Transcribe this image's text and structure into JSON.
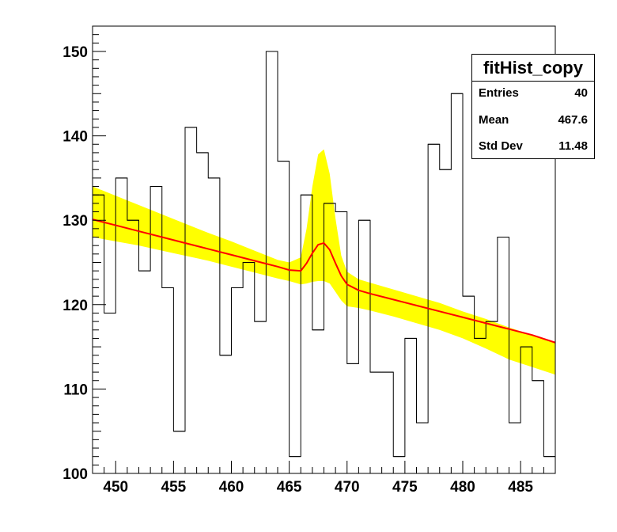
{
  "chart_data": {
    "type": "histogram",
    "title": "",
    "xlabel": "",
    "ylabel": "",
    "xlim": [
      448,
      488
    ],
    "ylim": [
      100,
      153
    ],
    "x_ticks": [
      450,
      455,
      460,
      465,
      470,
      475,
      480,
      485
    ],
    "y_ticks": [
      100,
      110,
      120,
      130,
      140,
      150
    ],
    "bin_width": 1,
    "bin_edges_start": 448,
    "series": [
      {
        "type": "histogram",
        "values": [
          133,
          119,
          135,
          130,
          124,
          134,
          122,
          105,
          141,
          138,
          135,
          114,
          122,
          125,
          118,
          150,
          137,
          102,
          133,
          117,
          132,
          131,
          113,
          130,
          112,
          112,
          102,
          116,
          106,
          139,
          136,
          145,
          121,
          116,
          118,
          128,
          106,
          115,
          111,
          102
        ],
        "color": "#000000"
      },
      {
        "type": "line",
        "x": [
          448,
          450,
          452,
          454,
          456,
          458,
          460,
          462,
          464,
          465,
          466,
          466.5,
          467,
          467.5,
          468,
          468.5,
          469,
          469.5,
          470,
          471,
          472,
          474,
          476,
          478,
          480,
          482,
          484,
          486,
          488
        ],
        "y": [
          130.1,
          129.4,
          128.7,
          128.0,
          127.3,
          126.6,
          125.9,
          125.2,
          124.5,
          124.1,
          124.0,
          124.9,
          126.1,
          127.1,
          127.3,
          126.5,
          124.9,
          123.4,
          122.4,
          121.7,
          121.3,
          120.6,
          119.9,
          119.2,
          118.5,
          117.8,
          117.1,
          116.4,
          115.5
        ],
        "color": "#ff0000"
      },
      {
        "type": "band",
        "x": [
          448,
          450,
          452,
          454,
          456,
          458,
          460,
          462,
          464,
          465,
          466,
          466.5,
          467,
          467.5,
          468,
          468.5,
          469,
          469.5,
          470,
          471,
          472,
          474,
          476,
          478,
          480,
          482,
          484,
          486,
          488
        ],
        "upper": [
          134.0,
          132.9,
          131.8,
          130.7,
          129.6,
          128.5,
          127.5,
          126.4,
          125.3,
          125.0,
          125.6,
          129.0,
          134.0,
          137.8,
          138.4,
          135.5,
          130.2,
          125.8,
          123.9,
          123.0,
          122.6,
          121.8,
          121.0,
          120.2,
          119.2,
          118.3,
          117.3,
          116.4,
          115.5
        ],
        "lower": [
          128.0,
          127.5,
          127.0,
          126.4,
          125.8,
          125.2,
          124.5,
          123.8,
          123.1,
          122.8,
          122.4,
          122.5,
          122.7,
          122.8,
          122.8,
          122.5,
          121.5,
          120.5,
          119.8,
          119.6,
          119.3,
          118.6,
          117.8,
          117.0,
          116.0,
          114.8,
          113.5,
          112.6,
          111.7
        ],
        "color": "#ffff00"
      }
    ]
  },
  "stats": {
    "title": "fitHist_copy",
    "rows": [
      {
        "label": "Entries",
        "value": "40"
      },
      {
        "label": "Mean",
        "value": "467.6"
      },
      {
        "label": "Std Dev",
        "value": "11.48"
      }
    ]
  }
}
